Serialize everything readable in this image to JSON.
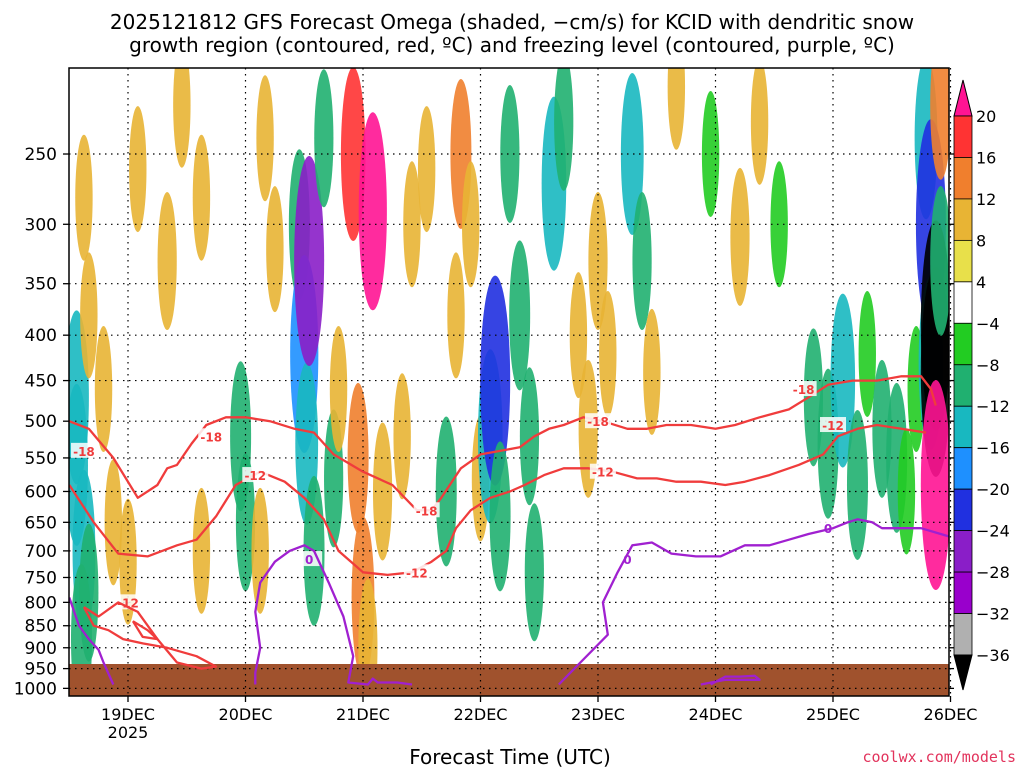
{
  "chart_data": {
    "type": "heatmap",
    "title_line1": "2025121812 GFS Forecast Omega (shaded, −cm/s) for KCID with dendritic snow",
    "title_line2": "growth region (contoured, red, ºC) and freezing level (contoured, purple, ºC)",
    "xlabel": "Forecast Time (UTC)",
    "credit": "coolwx.com/models",
    "y_axis_scale": "log-pressure, inverted",
    "y_ticks": [
      250,
      300,
      350,
      400,
      450,
      500,
      550,
      600,
      650,
      700,
      750,
      800,
      850,
      900,
      950,
      1000
    ],
    "ylim": [
      200,
      1020
    ],
    "x_ticks": [
      {
        "hours": 12,
        "label": "19DEC",
        "sub": "2025"
      },
      {
        "hours": 36,
        "label": "20DEC",
        "sub": ""
      },
      {
        "hours": 60,
        "label": "21DEC",
        "sub": ""
      },
      {
        "hours": 84,
        "label": "22DEC",
        "sub": ""
      },
      {
        "hours": 108,
        "label": "23DEC",
        "sub": ""
      },
      {
        "hours": 132,
        "label": "24DEC",
        "sub": ""
      },
      {
        "hours": 156,
        "label": "25DEC",
        "sub": ""
      },
      {
        "hours": 180,
        "label": "26DEC",
        "sub": ""
      }
    ],
    "xlim_hours": [
      0,
      180
    ],
    "colorbar": {
      "labels": [
        "20",
        "16",
        "12",
        "8",
        "4",
        "−4",
        "−8",
        "−12",
        "−16",
        "−20",
        "−24",
        "−28",
        "−32",
        "−36"
      ],
      "colors": [
        "#ff1493",
        "#ff3333",
        "#f07f2d",
        "#e8b434",
        "#e8e04a",
        "#ffffff",
        "#22cc22",
        "#20b070",
        "#18b8c0",
        "#1e90ff",
        "#2030e0",
        "#8a1ec8",
        "#9900cc",
        "#b0b0b0",
        "#000000"
      ]
    },
    "omega_cells": [
      {
        "h": 1.5,
        "p": 470,
        "v": -14
      },
      {
        "h": 1.5,
        "p": 560,
        "v": -12
      },
      {
        "h": 3,
        "p": 700,
        "v": -12
      },
      {
        "h": 2.5,
        "p": 880,
        "v": -10
      },
      {
        "h": 4,
        "p": 780,
        "v": -8
      },
      {
        "h": 3,
        "p": 280,
        "v": 6
      },
      {
        "h": 4,
        "p": 380,
        "v": 6
      },
      {
        "h": 7,
        "p": 460,
        "v": 6
      },
      {
        "h": 9,
        "p": 650,
        "v": 6
      },
      {
        "h": 12,
        "p": 720,
        "v": 6
      },
      {
        "h": 14,
        "p": 260,
        "v": 6
      },
      {
        "h": 20,
        "p": 330,
        "v": 8
      },
      {
        "h": 23,
        "p": 220,
        "v": 6
      },
      {
        "h": 27,
        "p": 280,
        "v": 6
      },
      {
        "h": 27,
        "p": 700,
        "v": 6
      },
      {
        "h": 35,
        "p": 520,
        "v": -10
      },
      {
        "h": 36,
        "p": 650,
        "v": -8
      },
      {
        "h": 39,
        "p": 700,
        "v": 6
      },
      {
        "h": 40,
        "p": 240,
        "v": 6
      },
      {
        "h": 42,
        "p": 320,
        "v": 6
      },
      {
        "h": 47,
        "p": 300,
        "v": -10
      },
      {
        "h": 48,
        "p": 420,
        "v": -18
      },
      {
        "h": 48.5,
        "p": 530,
        "v": -12
      },
      {
        "h": 49,
        "p": 330,
        "v": -24
      },
      {
        "h": 50,
        "p": 700,
        "v": -10
      },
      {
        "h": 52,
        "p": 240,
        "v": -8
      },
      {
        "h": 54,
        "p": 580,
        "v": -8
      },
      {
        "h": 55,
        "p": 460,
        "v": 6
      },
      {
        "h": 58,
        "p": 250,
        "v": 14
      },
      {
        "h": 59,
        "p": 550,
        "v": 10
      },
      {
        "h": 60,
        "p": 790,
        "v": 12
      },
      {
        "h": 61,
        "p": 900,
        "v": 8
      },
      {
        "h": 62,
        "p": 290,
        "v": 18
      },
      {
        "h": 64,
        "p": 600,
        "v": 8
      },
      {
        "h": 68,
        "p": 520,
        "v": 6
      },
      {
        "h": 70,
        "p": 300,
        "v": 6
      },
      {
        "h": 73,
        "p": 260,
        "v": 6
      },
      {
        "h": 77,
        "p": 600,
        "v": -10
      },
      {
        "h": 79,
        "p": 380,
        "v": 6
      },
      {
        "h": 80,
        "p": 250,
        "v": 10
      },
      {
        "h": 82,
        "p": 300,
        "v": 6
      },
      {
        "h": 84,
        "p": 580,
        "v": 6
      },
      {
        "h": 86,
        "p": 520,
        "v": -14
      },
      {
        "h": 87,
        "p": 450,
        "v": -20
      },
      {
        "h": 88,
        "p": 640,
        "v": -10
      },
      {
        "h": 90,
        "p": 250,
        "v": -8
      },
      {
        "h": 92,
        "p": 380,
        "v": -10
      },
      {
        "h": 94,
        "p": 520,
        "v": -8
      },
      {
        "h": 95,
        "p": 740,
        "v": -8
      },
      {
        "h": 99,
        "p": 270,
        "v": -14
      },
      {
        "h": 101,
        "p": 230,
        "v": -8
      },
      {
        "h": 104,
        "p": 400,
        "v": 6
      },
      {
        "h": 106,
        "p": 510,
        "v": 8
      },
      {
        "h": 108,
        "p": 330,
        "v": 8
      },
      {
        "h": 110,
        "p": 420,
        "v": 6
      },
      {
        "h": 115,
        "p": 250,
        "v": -12
      },
      {
        "h": 117,
        "p": 330,
        "v": -8
      },
      {
        "h": 119,
        "p": 440,
        "v": 6
      },
      {
        "h": 124,
        "p": 210,
        "v": 6
      },
      {
        "h": 131,
        "p": 250,
        "v": -6
      },
      {
        "h": 137,
        "p": 310,
        "v": 8
      },
      {
        "h": 141,
        "p": 230,
        "v": 6
      },
      {
        "h": 145,
        "p": 300,
        "v": -6
      },
      {
        "h": 152,
        "p": 470,
        "v": -8
      },
      {
        "h": 155,
        "p": 530,
        "v": -10
      },
      {
        "h": 158,
        "p": 450,
        "v": -14
      },
      {
        "h": 161,
        "p": 590,
        "v": -10
      },
      {
        "h": 163,
        "p": 420,
        "v": -6
      },
      {
        "h": 166,
        "p": 510,
        "v": -8
      },
      {
        "h": 169,
        "p": 550,
        "v": -10
      },
      {
        "h": 171,
        "p": 600,
        "v": -6
      },
      {
        "h": 173,
        "p": 460,
        "v": -6
      },
      {
        "h": 175,
        "p": 240,
        "v": -12
      },
      {
        "h": 176,
        "p": 300,
        "v": -20
      },
      {
        "h": 176,
        "p": 430,
        "v": -14
      },
      {
        "h": 177,
        "p": 390,
        "v": -36
      },
      {
        "h": 177,
        "p": 440,
        "v": -36
      },
      {
        "h": 177,
        "p": 590,
        "v": 20
      },
      {
        "h": 178,
        "p": 220,
        "v": 10
      },
      {
        "h": 178,
        "p": 330,
        "v": -10
      }
    ],
    "series": [
      {
        "color": "#f03c3c",
        "label": "-18",
        "label_at": [
          [
            3,
            540
          ],
          [
            29,
            520
          ],
          [
            73,
            630
          ],
          [
            108,
            500
          ],
          [
            150,
            460
          ]
        ],
        "values": [
          [
            0,
            500
          ],
          [
            4,
            510
          ],
          [
            9,
            550
          ],
          [
            14,
            610
          ],
          [
            18,
            590
          ],
          [
            20,
            565
          ],
          [
            22,
            560
          ],
          [
            25,
            530
          ],
          [
            28,
            505
          ],
          [
            32,
            495
          ],
          [
            36,
            495
          ],
          [
            41,
            500
          ],
          [
            46,
            510
          ],
          [
            50,
            515
          ],
          [
            54,
            545
          ],
          [
            60,
            570
          ],
          [
            66,
            590
          ],
          [
            71,
            630
          ],
          [
            74,
            630
          ],
          [
            76,
            610
          ],
          [
            80,
            565
          ],
          [
            84,
            545
          ],
          [
            88,
            540
          ],
          [
            92,
            535
          ],
          [
            95,
            520
          ],
          [
            98,
            510
          ],
          [
            101,
            505
          ],
          [
            105,
            495
          ],
          [
            109,
            500
          ],
          [
            114,
            510
          ],
          [
            118,
            510
          ],
          [
            122,
            505
          ],
          [
            127,
            505
          ],
          [
            132,
            510
          ],
          [
            136,
            505
          ],
          [
            141,
            495
          ],
          [
            147,
            485
          ],
          [
            151,
            470
          ],
          [
            155,
            455
          ],
          [
            160,
            450
          ],
          [
            165,
            450
          ],
          [
            170,
            445
          ],
          [
            174,
            445
          ],
          [
            176,
            460
          ],
          [
            177,
            480
          ]
        ]
      },
      {
        "color": "#f03c3c",
        "label": "-12",
        "label_at": [
          [
            38,
            575
          ],
          [
            71,
            740
          ],
          [
            109,
            570
          ],
          [
            156,
            505
          ],
          [
            12,
            800
          ]
        ],
        "values": [
          [
            0,
            590
          ],
          [
            5,
            650
          ],
          [
            10,
            705
          ],
          [
            16,
            710
          ],
          [
            22,
            690
          ],
          [
            26,
            680
          ],
          [
            30,
            640
          ],
          [
            34,
            590
          ],
          [
            39,
            570
          ],
          [
            44,
            585
          ],
          [
            48,
            610
          ],
          [
            52,
            645
          ],
          [
            55,
            700
          ],
          [
            60,
            740
          ],
          [
            65,
            745
          ],
          [
            70,
            740
          ],
          [
            74,
            720
          ],
          [
            77,
            700
          ],
          [
            79,
            660
          ],
          [
            82,
            630
          ],
          [
            86,
            610
          ],
          [
            90,
            600
          ],
          [
            93,
            590
          ],
          [
            97,
            575
          ],
          [
            101,
            565
          ],
          [
            106,
            565
          ],
          [
            111,
            570
          ],
          [
            116,
            580
          ],
          [
            120,
            580
          ],
          [
            124,
            585
          ],
          [
            129,
            585
          ],
          [
            134,
            590
          ],
          [
            138,
            585
          ],
          [
            143,
            575
          ],
          [
            149,
            560
          ],
          [
            154,
            545
          ],
          [
            157,
            520
          ],
          [
            161,
            510
          ],
          [
            165,
            505
          ],
          [
            170,
            510
          ],
          [
            175,
            515
          ]
        ]
      },
      {
        "color": "#f03c3c",
        "label": "",
        "values": [
          [
            3,
            810
          ],
          [
            6,
            830
          ],
          [
            10,
            800
          ],
          [
            14,
            820
          ],
          [
            18,
            880
          ],
          [
            22,
            935
          ],
          [
            27,
            950
          ],
          [
            30,
            945
          ],
          [
            26,
            920
          ],
          [
            20,
            900
          ],
          [
            15,
            890
          ],
          [
            11,
            880
          ],
          [
            8,
            860
          ],
          [
            5,
            850
          ],
          [
            3,
            810
          ]
        ]
      },
      {
        "color": "#f03c3c",
        "label": "",
        "values": [
          [
            13,
            840
          ],
          [
            16,
            860
          ],
          [
            18,
            880
          ],
          [
            15,
            875
          ],
          [
            13,
            840
          ]
        ]
      },
      {
        "color": "#a020d0",
        "label": "0",
        "label_at": [
          [
            49,
            715
          ],
          [
            114,
            715
          ],
          [
            155,
            660
          ]
        ],
        "values": [
          [
            0,
            790
          ],
          [
            2,
            850
          ],
          [
            4,
            880
          ],
          [
            6,
            905
          ],
          [
            7,
            935
          ],
          [
            9,
            990
          ]
        ]
      },
      {
        "color": "#a020d0",
        "label": "",
        "values": [
          [
            38,
            990
          ],
          [
            38,
            960
          ],
          [
            39,
            900
          ],
          [
            38,
            820
          ],
          [
            39,
            760
          ],
          [
            42,
            720
          ],
          [
            45,
            700
          ],
          [
            48,
            690
          ],
          [
            50,
            700
          ],
          [
            53,
            760
          ],
          [
            56,
            830
          ],
          [
            58,
            920
          ],
          [
            57,
            985
          ],
          [
            61,
            990
          ],
          [
            62,
            975
          ],
          [
            63,
            985
          ],
          [
            67,
            985
          ],
          [
            70,
            990
          ]
        ]
      },
      {
        "color": "#a020d0",
        "label": "",
        "values": [
          [
            100,
            990
          ],
          [
            104,
            940
          ],
          [
            110,
            870
          ],
          [
            109,
            800
          ],
          [
            112,
            740
          ],
          [
            115,
            690
          ],
          [
            119,
            685
          ],
          [
            123,
            705
          ],
          [
            128,
            710
          ],
          [
            133,
            710
          ],
          [
            138,
            690
          ],
          [
            143,
            690
          ],
          [
            147,
            680
          ],
          [
            151,
            670
          ],
          [
            156,
            660
          ],
          [
            159,
            650
          ],
          [
            161,
            645
          ],
          [
            164,
            650
          ],
          [
            166,
            660
          ],
          [
            169,
            660
          ],
          [
            174,
            660
          ],
          [
            178,
            670
          ],
          [
            180,
            675
          ]
        ]
      },
      {
        "color": "#a020d0",
        "label": "",
        "values": [
          [
            131,
            990
          ],
          [
            134,
            970
          ],
          [
            137,
            970
          ],
          [
            140,
            968
          ],
          [
            141,
            978
          ],
          [
            134,
            978
          ],
          [
            129,
            990
          ]
        ]
      }
    ],
    "grid": true,
    "legend": "colorbar-right"
  }
}
